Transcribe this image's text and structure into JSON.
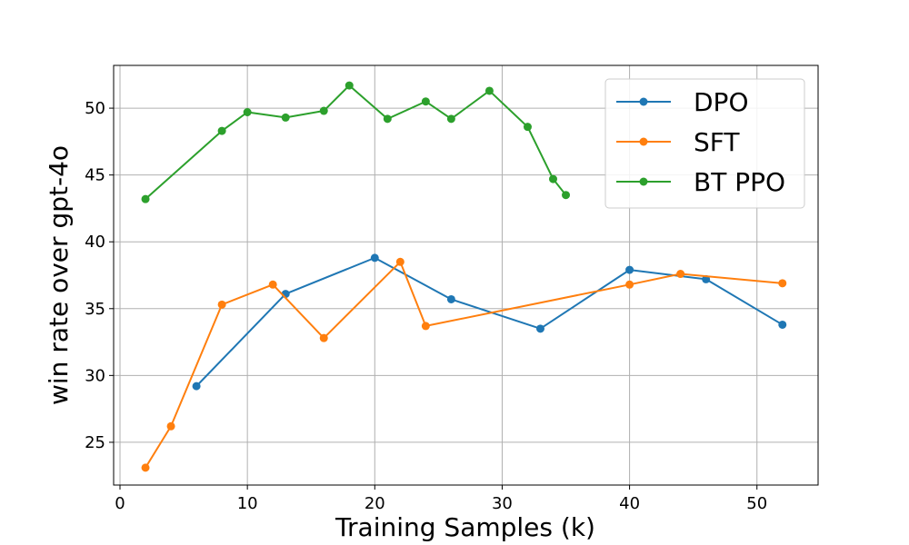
{
  "chart_data": {
    "type": "line",
    "title": "",
    "xlabel": "Training Samples (k)",
    "ylabel": "win rate over gpt-4o",
    "xlim": [
      -0.5,
      54.8
    ],
    "ylim": [
      21.8,
      53.2
    ],
    "xticks": [
      0,
      10,
      20,
      30,
      40,
      50
    ],
    "yticks": [
      25,
      30,
      35,
      40,
      45,
      50
    ],
    "grid": true,
    "legend_position": "top-right",
    "series": [
      {
        "name": "DPO",
        "color": "#1f77b4",
        "x": [
          6,
          13,
          20,
          26,
          33,
          40,
          46,
          52
        ],
        "y": [
          29.2,
          36.1,
          38.8,
          35.7,
          33.5,
          37.9,
          37.2,
          33.8
        ]
      },
      {
        "name": "SFT",
        "color": "#ff7f0e",
        "x": [
          2,
          4,
          8,
          12,
          16,
          22,
          24,
          40,
          44,
          52
        ],
        "y": [
          23.1,
          26.2,
          35.3,
          36.8,
          32.8,
          38.5,
          33.7,
          36.8,
          37.6,
          36.9
        ]
      },
      {
        "name": "BT PPO",
        "color": "#2ca02c",
        "x": [
          2,
          8,
          10,
          13,
          16,
          18,
          21,
          24,
          26,
          29,
          32,
          34,
          35
        ],
        "y": [
          43.2,
          48.3,
          49.7,
          49.3,
          49.8,
          51.7,
          49.2,
          50.5,
          49.2,
          51.3,
          48.6,
          44.7,
          43.5
        ]
      }
    ]
  }
}
